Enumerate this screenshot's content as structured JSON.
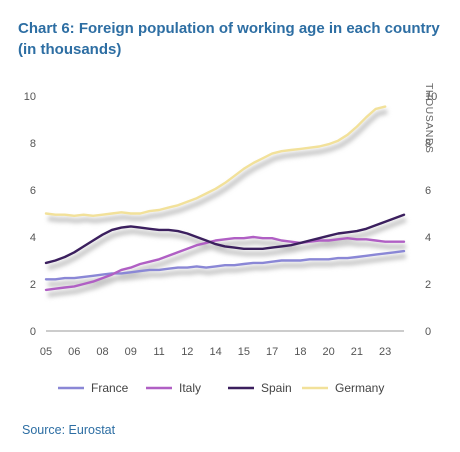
{
  "chart_data": {
    "type": "line",
    "title": "Chart 6: Foreign population of working age in each country (in thousands)",
    "ylabel_right": "THOUSANDS",
    "source": "Source: Eurostat",
    "ylim": [
      0,
      10
    ],
    "xlim": [
      2005,
      2024
    ],
    "yticks": [
      "0",
      "2",
      "4",
      "6",
      "8",
      "10"
    ],
    "xticks": [
      {
        "label": "05",
        "year": 2005
      },
      {
        "label": "06",
        "year": 2006.5
      },
      {
        "label": "08",
        "year": 2008
      },
      {
        "label": "09",
        "year": 2009.5
      },
      {
        "label": "11",
        "year": 2011
      },
      {
        "label": "12",
        "year": 2012.5
      },
      {
        "label": "14",
        "year": 2014
      },
      {
        "label": "15",
        "year": 2015.5
      },
      {
        "label": "17",
        "year": 2017
      },
      {
        "label": "18",
        "year": 2018.5
      },
      {
        "label": "20",
        "year": 2020
      },
      {
        "label": "21",
        "year": 2021.5
      },
      {
        "label": "23",
        "year": 2023
      }
    ],
    "grid": false,
    "legend_position": "bottom",
    "series": [
      {
        "name": "France",
        "color": "#8a87d6",
        "x": [
          2005,
          2005.5,
          2006,
          2006.5,
          2007,
          2007.5,
          2008,
          2008.5,
          2009,
          2009.5,
          2010,
          2010.5,
          2011,
          2011.5,
          2012,
          2012.5,
          2013,
          2013.5,
          2014,
          2014.5,
          2015,
          2015.5,
          2016,
          2016.5,
          2017,
          2017.5,
          2018,
          2018.5,
          2019,
          2019.5,
          2020,
          2020.5,
          2021,
          2021.5,
          2022,
          2022.5,
          2023,
          2023.5,
          2024
        ],
        "y": [
          2.2,
          2.2,
          2.25,
          2.25,
          2.3,
          2.35,
          2.4,
          2.45,
          2.45,
          2.5,
          2.55,
          2.6,
          2.6,
          2.65,
          2.7,
          2.7,
          2.75,
          2.7,
          2.75,
          2.8,
          2.8,
          2.85,
          2.9,
          2.9,
          2.95,
          3.0,
          3.0,
          3.0,
          3.05,
          3.05,
          3.05,
          3.1,
          3.1,
          3.15,
          3.2,
          3.25,
          3.3,
          3.35,
          3.4
        ]
      },
      {
        "name": "Italy",
        "color": "#b05fc4",
        "x": [
          2005,
          2005.5,
          2006,
          2006.5,
          2007,
          2007.5,
          2008,
          2008.5,
          2009,
          2009.5,
          2010,
          2010.5,
          2011,
          2011.5,
          2012,
          2012.5,
          2013,
          2013.5,
          2014,
          2014.5,
          2015,
          2015.5,
          2016,
          2016.5,
          2017,
          2017.5,
          2018,
          2018.5,
          2019,
          2019.5,
          2020,
          2020.5,
          2021,
          2021.5,
          2022,
          2022.5,
          2023,
          2023.5,
          2024
        ],
        "y": [
          1.75,
          1.8,
          1.85,
          1.9,
          2.0,
          2.1,
          2.25,
          2.4,
          2.6,
          2.7,
          2.85,
          2.95,
          3.05,
          3.2,
          3.35,
          3.5,
          3.65,
          3.75,
          3.85,
          3.9,
          3.95,
          3.95,
          4.0,
          3.95,
          3.95,
          3.85,
          3.8,
          3.75,
          3.8,
          3.85,
          3.85,
          3.9,
          3.95,
          3.9,
          3.9,
          3.85,
          3.8,
          3.8,
          3.8
        ]
      },
      {
        "name": "Spain",
        "color": "#3b1f5e",
        "x": [
          2005,
          2005.5,
          2006,
          2006.5,
          2007,
          2007.5,
          2008,
          2008.5,
          2009,
          2009.5,
          2010,
          2010.5,
          2011,
          2011.5,
          2012,
          2012.5,
          2013,
          2013.5,
          2014,
          2014.5,
          2015,
          2015.5,
          2016,
          2016.5,
          2017,
          2017.5,
          2018,
          2018.5,
          2019,
          2019.5,
          2020,
          2020.5,
          2021,
          2021.5,
          2022,
          2022.5,
          2023,
          2023.5,
          2024
        ],
        "y": [
          2.9,
          3.0,
          3.15,
          3.35,
          3.6,
          3.85,
          4.1,
          4.3,
          4.4,
          4.45,
          4.4,
          4.35,
          4.3,
          4.3,
          4.25,
          4.15,
          4.0,
          3.85,
          3.7,
          3.6,
          3.55,
          3.5,
          3.5,
          3.5,
          3.55,
          3.6,
          3.65,
          3.75,
          3.85,
          3.95,
          4.05,
          4.15,
          4.2,
          4.25,
          4.35,
          4.5,
          4.65,
          4.8,
          4.95
        ]
      },
      {
        "name": "Germany",
        "color": "#f2e19a",
        "x": [
          2005,
          2005.5,
          2006,
          2006.5,
          2007,
          2007.5,
          2008,
          2008.5,
          2009,
          2009.5,
          2010,
          2010.5,
          2011,
          2011.5,
          2012,
          2012.5,
          2013,
          2013.5,
          2014,
          2014.5,
          2015,
          2015.5,
          2016,
          2016.5,
          2017,
          2017.5,
          2018,
          2018.5,
          2019,
          2019.5,
          2020,
          2020.5,
          2021,
          2021.5,
          2022,
          2022.5,
          2023
        ],
        "y": [
          5.0,
          4.95,
          4.95,
          4.9,
          4.95,
          4.9,
          4.95,
          5.0,
          5.05,
          5.0,
          5.0,
          5.1,
          5.15,
          5.25,
          5.35,
          5.5,
          5.65,
          5.85,
          6.05,
          6.3,
          6.6,
          6.9,
          7.15,
          7.35,
          7.55,
          7.65,
          7.7,
          7.75,
          7.8,
          7.85,
          7.95,
          8.1,
          8.35,
          8.7,
          9.1,
          9.45,
          9.55
        ]
      }
    ]
  }
}
